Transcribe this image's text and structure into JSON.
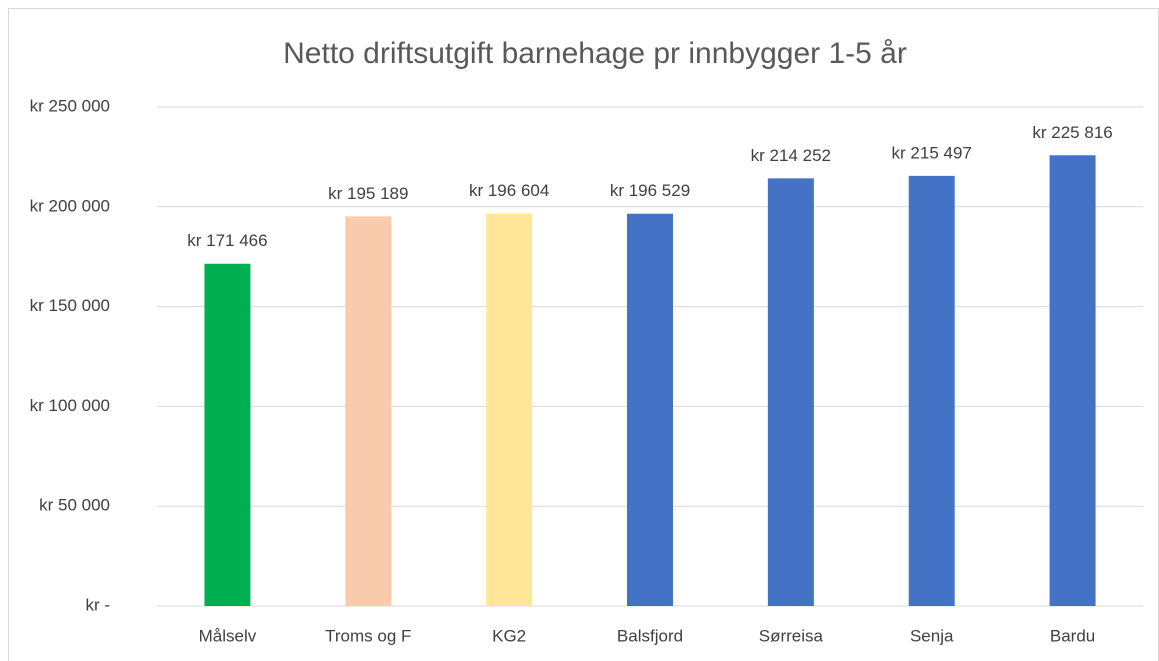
{
  "chart_data": {
    "type": "bar",
    "title": "Netto driftsutgift barnehage pr innbygger 1-5 år",
    "categories": [
      "Målselv",
      "Troms og F",
      "KG2",
      "Balsfjord",
      "Sørreisa",
      "Senja",
      "Bardu"
    ],
    "values": [
      171466,
      195189,
      196604,
      196529,
      214252,
      215497,
      225816
    ],
    "value_labels": [
      "kr 171 466",
      "kr 195 189",
      "kr 196 604",
      "kr 196 529",
      "kr 214 252",
      "kr 215 497",
      "kr 225 816"
    ],
    "colors": [
      "#00b050",
      "#f8cbad",
      "#ffe699",
      "#4472c4",
      "#4472c4",
      "#4472c4",
      "#4472c4"
    ],
    "ylim": [
      0,
      250000
    ],
    "yticks": [
      {
        "value": 0,
        "label": "kr -"
      },
      {
        "value": 50000,
        "label": "kr 50 000"
      },
      {
        "value": 100000,
        "label": "kr 100 000"
      },
      {
        "value": 150000,
        "label": "kr 150 000"
      },
      {
        "value": 200000,
        "label": "kr 200 000"
      },
      {
        "value": 250000,
        "label": "kr 250 000"
      }
    ],
    "grid": true
  }
}
